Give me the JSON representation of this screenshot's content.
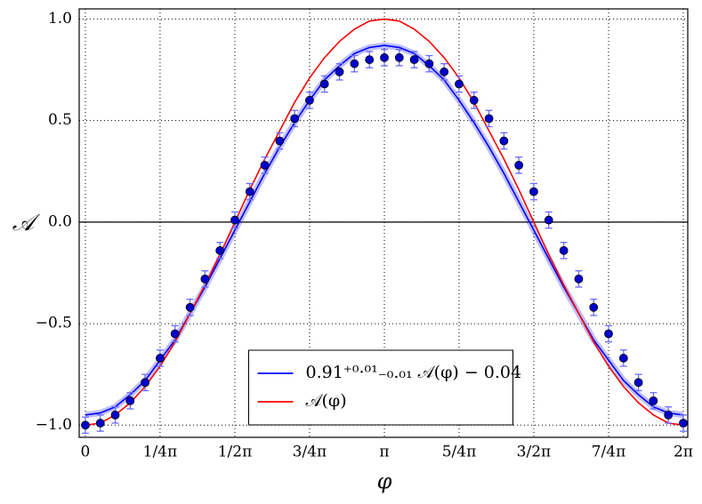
{
  "chart_data": {
    "type": "line",
    "xlabel": "φ",
    "ylabel": "𝒜",
    "xlim": [
      -0.065,
      6.33
    ],
    "ylim": [
      -1.06,
      1.05
    ],
    "xticks": [
      {
        "value": 0,
        "label": "0"
      },
      {
        "value": 0.785,
        "label": "1/4π"
      },
      {
        "value": 1.571,
        "label": "1/2π"
      },
      {
        "value": 2.356,
        "label": "3/4π"
      },
      {
        "value": 3.142,
        "label": "π"
      },
      {
        "value": 3.927,
        "label": "5/4π"
      },
      {
        "value": 4.712,
        "label": "3/2π"
      },
      {
        "value": 5.498,
        "label": "7/4π"
      },
      {
        "value": 6.283,
        "label": "2π"
      }
    ],
    "yticks": [
      {
        "value": -1,
        "label": "−1.0"
      },
      {
        "value": -0.5,
        "label": "−0.5"
      },
      {
        "value": 0,
        "label": "0.0"
      },
      {
        "value": 0.5,
        "label": "0.5"
      },
      {
        "value": 1,
        "label": "1.0"
      }
    ],
    "grid": true,
    "legend": "lower center",
    "x": [
      0,
      0.157,
      0.314,
      0.471,
      0.628,
      0.785,
      0.942,
      1.1,
      1.257,
      1.414,
      1.571,
      1.728,
      1.885,
      2.042,
      2.199,
      2.356,
      2.513,
      2.67,
      2.827,
      2.985,
      3.142,
      3.299,
      3.456,
      3.613,
      3.77,
      3.927,
      4.084,
      4.241,
      4.398,
      4.555,
      4.712,
      4.869,
      5.027,
      5.184,
      5.341,
      5.498,
      5.655,
      5.812,
      5.969,
      6.126,
      6.283
    ],
    "series": [
      {
        "type": "line",
        "name": "0.91⁺⁰·⁰¹₋₀.₀₁ 𝒜(φ) − 0.04",
        "color": "#0000ff",
        "values": [
          -0.95,
          -0.94,
          -0.91,
          -0.85,
          -0.78,
          -0.68,
          -0.58,
          -0.45,
          -0.32,
          -0.18,
          -0.04,
          0.1,
          0.24,
          0.37,
          0.49,
          0.6,
          0.7,
          0.77,
          0.83,
          0.86,
          0.87,
          0.86,
          0.83,
          0.77,
          0.7,
          0.6,
          0.49,
          0.37,
          0.24,
          0.1,
          -0.04,
          -0.18,
          -0.32,
          -0.45,
          -0.58,
          -0.68,
          -0.78,
          -0.85,
          -0.91,
          -0.94,
          -0.95
        ]
      },
      {
        "type": "line",
        "name": "𝒜(φ)",
        "color": "#ff0000",
        "values": [
          -1,
          -0.99,
          -0.95,
          -0.89,
          -0.81,
          -0.71,
          -0.59,
          -0.45,
          -0.31,
          -0.16,
          0,
          0.16,
          0.31,
          0.45,
          0.59,
          0.71,
          0.81,
          0.89,
          0.95,
          0.99,
          1,
          0.99,
          0.95,
          0.89,
          0.81,
          0.71,
          0.59,
          0.45,
          0.31,
          0.16,
          0,
          -0.16,
          -0.31,
          -0.45,
          -0.59,
          -0.71,
          -0.81,
          -0.89,
          -0.95,
          -0.99,
          -1
        ]
      },
      {
        "type": "errorbar",
        "color": "#0000cc",
        "values": [
          -1,
          -0.99,
          -0.95,
          -0.88,
          -0.79,
          -0.67,
          -0.55,
          -0.42,
          -0.28,
          -0.14,
          0.01,
          0.15,
          0.28,
          0.4,
          0.51,
          0.6,
          0.68,
          0.74,
          0.78,
          0.8,
          0.81,
          0.81,
          0.8,
          0.78,
          0.74,
          0.68,
          0.6,
          0.51,
          0.4,
          0.28,
          0.15,
          0.01,
          -0.14,
          -0.28,
          -0.42,
          -0.55,
          -0.67,
          -0.79,
          -0.88,
          -0.95,
          -0.99
        ],
        "errors": [
          0.04,
          0.04,
          0.04,
          0.04,
          0.04,
          0.04,
          0.04,
          0.04,
          0.04,
          0.04,
          0.04,
          0.04,
          0.04,
          0.04,
          0.04,
          0.04,
          0.04,
          0.04,
          0.04,
          0.04,
          0.04,
          0.04,
          0.04,
          0.04,
          0.04,
          0.04,
          0.04,
          0.04,
          0.04,
          0.04,
          0.04,
          0.04,
          0.04,
          0.04,
          0.04,
          0.04,
          0.04,
          0.04,
          0.04,
          0.04,
          0.04
        ]
      }
    ]
  }
}
